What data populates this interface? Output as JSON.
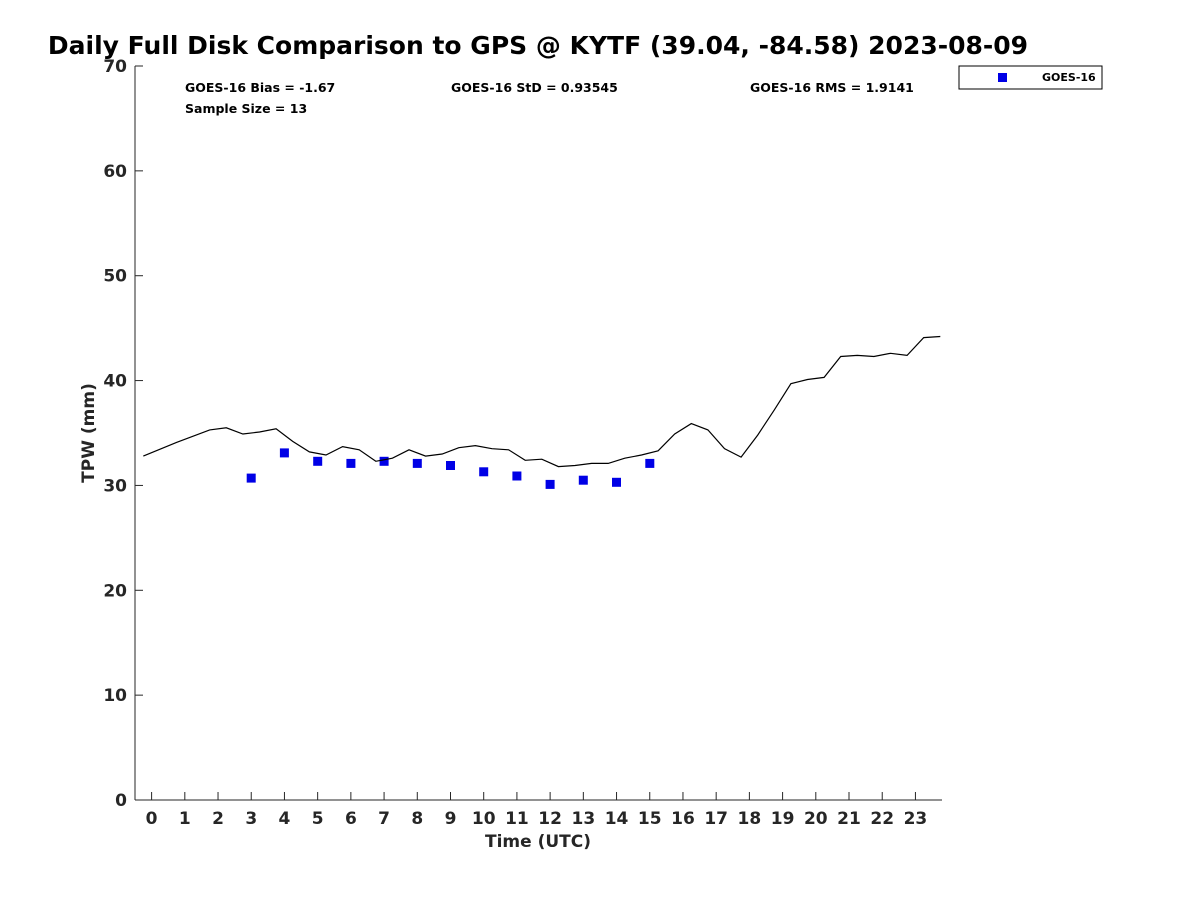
{
  "chart_data": {
    "type": "scatter",
    "title": "Daily Full Disk Comparison to GPS @ KYTF (39.04, -84.58) 2023-08-09",
    "xlabel": "Time (UTC)",
    "ylabel": "TPW (mm)",
    "xlim": [
      -0.5,
      23.8
    ],
    "ylim": [
      0,
      70
    ],
    "xticks": [
      0,
      1,
      2,
      3,
      4,
      5,
      6,
      7,
      8,
      9,
      10,
      11,
      12,
      13,
      14,
      15,
      16,
      17,
      18,
      19,
      20,
      21,
      22,
      23
    ],
    "yticks": [
      0,
      10,
      20,
      30,
      40,
      50,
      60,
      70
    ],
    "grid": false,
    "legend_position": "top-right (outside plot)",
    "stats": {
      "bias": "GOES-16 Bias = -1.67",
      "std": "GOES-16 StD = 0.93545",
      "rms": "GOES-16 RMS = 1.9141",
      "sample_size": "Sample Size = 13"
    },
    "series": [
      {
        "name": "GOES-16",
        "kind": "scatter",
        "marker": "square",
        "color": "#0000e6",
        "x": [
          3,
          4,
          5,
          6,
          7,
          8,
          9,
          10,
          11,
          12,
          13,
          14,
          15
        ],
        "y": [
          30.7,
          33.1,
          32.3,
          32.1,
          32.3,
          32.1,
          31.9,
          31.3,
          30.9,
          30.1,
          30.5,
          30.3,
          32.1
        ]
      },
      {
        "kind": "line",
        "color": "#000000",
        "x": [
          -0.25,
          0.75,
          1.75,
          2.25,
          2.75,
          3.25,
          3.75,
          4.25,
          4.75,
          5.25,
          5.75,
          6.25,
          6.75,
          7.25,
          7.75,
          8.25,
          8.75,
          9.25,
          9.75,
          10.25,
          10.75,
          11.25,
          11.75,
          12.25,
          12.75,
          13.25,
          13.75,
          14.25,
          14.75,
          15.25,
          15.75,
          16.25,
          16.75,
          17.25,
          17.75,
          18.25,
          18.75,
          19.25,
          19.75,
          20.25,
          20.75,
          21.25,
          21.75,
          22.25,
          22.75,
          23.25,
          23.75
        ],
        "y": [
          32.8,
          34.1,
          35.3,
          35.5,
          34.9,
          35.1,
          35.4,
          34.2,
          33.2,
          32.9,
          33.7,
          33.4,
          32.3,
          32.6,
          33.4,
          32.8,
          33.0,
          33.6,
          33.8,
          33.5,
          33.4,
          32.4,
          32.5,
          31.8,
          31.9,
          32.1,
          32.1,
          32.6,
          32.9,
          33.3,
          34.9,
          35.9,
          35.3,
          33.5,
          32.7,
          34.8,
          37.2,
          39.7,
          40.1,
          40.3,
          42.3,
          42.4,
          42.3,
          42.6,
          42.4,
          44.1,
          44.2
        ]
      }
    ]
  }
}
